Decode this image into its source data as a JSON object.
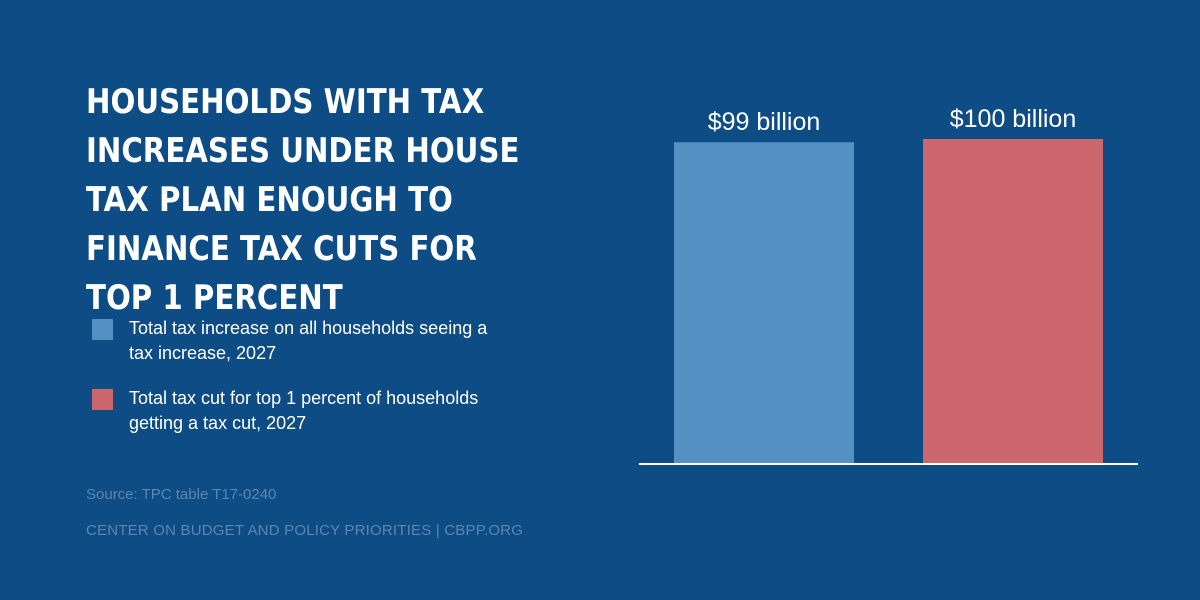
{
  "title": "Households with tax increases under House tax plan enough to finance tax cuts for top 1 percent",
  "legend": [
    {
      "label": "Total tax increase on all households seeing a tax increase, 2027",
      "color": "#5590c2"
    },
    {
      "label": "Total tax cut for top 1 percent of households getting a tax cut, 2027",
      "color": "#cc676d"
    }
  ],
  "source": "Source: TPC table T17-0240",
  "org": "CENTER ON BUDGET AND POLICY PRIORITIES | CBPP.ORG",
  "chart_data": {
    "type": "bar",
    "categories": [
      "Total tax increase on all households seeing a tax increase, 2027",
      "Total tax cut for top 1 percent of households getting a tax cut, 2027"
    ],
    "values": [
      99,
      100
    ],
    "data_labels": [
      "$99 billion",
      "$100 billion"
    ],
    "unit": "billion dollars",
    "colors": [
      "#5590c2",
      "#cc676d"
    ],
    "ylim": [
      0,
      100
    ],
    "grid": false,
    "legend_position": "left"
  }
}
